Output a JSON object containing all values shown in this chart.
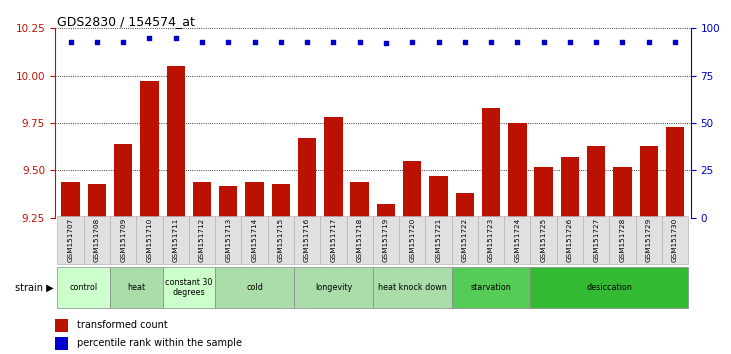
{
  "title": "GDS2830 / 154574_at",
  "samples": [
    "GSM151707",
    "GSM151708",
    "GSM151709",
    "GSM151710",
    "GSM151711",
    "GSM151712",
    "GSM151713",
    "GSM151714",
    "GSM151715",
    "GSM151716",
    "GSM151717",
    "GSM151718",
    "GSM151719",
    "GSM151720",
    "GSM151721",
    "GSM151722",
    "GSM151723",
    "GSM151724",
    "GSM151725",
    "GSM151726",
    "GSM151727",
    "GSM151728",
    "GSM151729",
    "GSM151730"
  ],
  "bar_values": [
    9.44,
    9.43,
    9.64,
    9.97,
    10.05,
    9.44,
    9.42,
    9.44,
    9.43,
    9.67,
    9.78,
    9.44,
    9.32,
    9.55,
    9.47,
    9.38,
    9.83,
    9.75,
    9.52,
    9.57,
    9.63,
    9.52,
    9.63,
    9.73
  ],
  "percentile_values": [
    93,
    93,
    93,
    95,
    95,
    93,
    93,
    93,
    93,
    93,
    93,
    93,
    92,
    93,
    93,
    93,
    93,
    93,
    93,
    93,
    93,
    93,
    93,
    93
  ],
  "bar_color": "#bb1100",
  "percentile_color": "#0000cc",
  "ylim_left": [
    9.25,
    10.25
  ],
  "ylim_right": [
    0,
    100
  ],
  "yticks_left": [
    9.25,
    9.5,
    9.75,
    10.0,
    10.25
  ],
  "yticks_right": [
    0,
    25,
    50,
    75,
    100
  ],
  "groups": [
    {
      "label": "control",
      "start": 0,
      "end": 2,
      "color": "#ccffcc"
    },
    {
      "label": "heat",
      "start": 2,
      "end": 4,
      "color": "#aaddaa"
    },
    {
      "label": "constant 30\ndegrees",
      "start": 4,
      "end": 6,
      "color": "#ccffcc"
    },
    {
      "label": "cold",
      "start": 6,
      "end": 9,
      "color": "#aaddaa"
    },
    {
      "label": "longevity",
      "start": 9,
      "end": 12,
      "color": "#aaddaa"
    },
    {
      "label": "heat knock down",
      "start": 12,
      "end": 15,
      "color": "#aaddaa"
    },
    {
      "label": "starvation",
      "start": 15,
      "end": 18,
      "color": "#55cc55"
    },
    {
      "label": "desiccation",
      "start": 18,
      "end": 24,
      "color": "#33bb33"
    }
  ],
  "legend_bar_label": "transformed count",
  "legend_dot_label": "percentile rank within the sample"
}
